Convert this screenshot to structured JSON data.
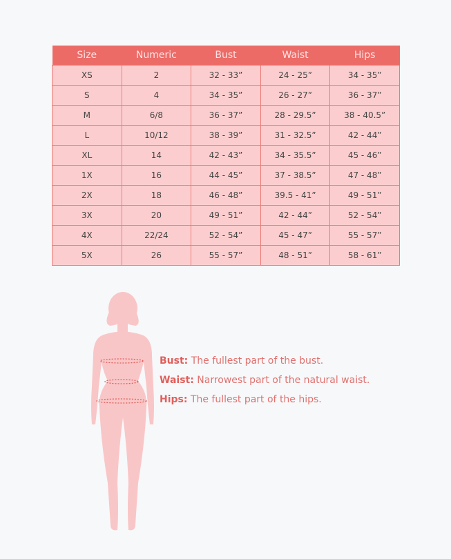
{
  "table": {
    "headers": [
      "Size",
      "Numeric",
      "Bust",
      "Waist",
      "Hips"
    ],
    "rows": [
      [
        "XS",
        "2",
        "32  -  33”",
        "24 - 25”",
        "34 - 35”"
      ],
      [
        "S",
        "4",
        "34 - 35”",
        "26 - 27”",
        "36 - 37”"
      ],
      [
        "M",
        "6/8",
        "36 - 37”",
        "28 - 29.5”",
        "38 - 40.5”"
      ],
      [
        "L",
        "10/12",
        "38 - 39”",
        "31 - 32.5”",
        "42 - 44”"
      ],
      [
        "XL",
        "14",
        "42 - 43”",
        "34 - 35.5”",
        "45 - 46”"
      ],
      [
        "1X",
        "16",
        "44 - 45”",
        "37 - 38.5”",
        "47 - 48”"
      ],
      [
        "2X",
        "18",
        "46 - 48”",
        "39.5 - 41”",
        "49 - 51”"
      ],
      [
        "3X",
        "20",
        "49 - 51”",
        "42 - 44”",
        "52 - 54”"
      ],
      [
        "4X",
        "22/24",
        "52 - 54”",
        "45 - 47”",
        "55 - 57”"
      ],
      [
        "5X",
        "26",
        "55 - 57”",
        "48 - 51”",
        "58 - 61”"
      ]
    ]
  },
  "legend": [
    {
      "term": "Bust:",
      "desc": " The fullest part of the bust."
    },
    {
      "term": "Waist:",
      "desc": " Narrowest part of the natural waist."
    },
    {
      "term": "Hips:",
      "desc": " The fullest part of the hips."
    }
  ],
  "colors": {
    "header": "#ec6b67",
    "cell": "#fccdce",
    "figure": "#f9c6c7",
    "accent": "#e0605c"
  }
}
